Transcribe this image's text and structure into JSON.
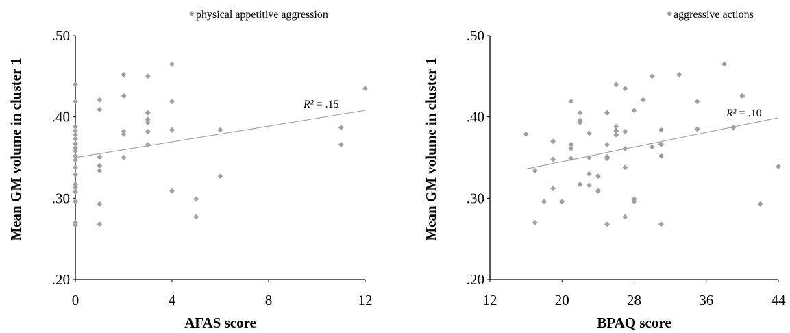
{
  "colors": {
    "marker": "#a0a0a0",
    "trend": "#a6a6a6",
    "axis": "#000000"
  },
  "chart_data": [
    {
      "type": "scatter",
      "legend": "physical appetitive aggression",
      "xlabel": "AFAS score",
      "ylabel": "Mean GM volume in cluster 1",
      "xlim": [
        0,
        12
      ],
      "ylim": [
        0.2,
        0.5
      ],
      "xticks": [
        "0",
        "4",
        "8",
        "12"
      ],
      "xtick_values": [
        0,
        4,
        8,
        12
      ],
      "yticks": [
        ".20",
        ".30",
        ".40",
        ".50"
      ],
      "ytick_values": [
        0.2,
        0.3,
        0.4,
        0.5
      ],
      "r2_label": "= .15",
      "r2_italic": "R²",
      "trendline": {
        "x": [
          0,
          12
        ],
        "y": [
          0.35,
          0.408
        ]
      },
      "points": [
        [
          0,
          0.44
        ],
        [
          0,
          0.419
        ],
        [
          0,
          0.388
        ],
        [
          0,
          0.383
        ],
        [
          0,
          0.378
        ],
        [
          0,
          0.373
        ],
        [
          0,
          0.367
        ],
        [
          0,
          0.362
        ],
        [
          0,
          0.358
        ],
        [
          0,
          0.352
        ],
        [
          0,
          0.347
        ],
        [
          0,
          0.338
        ],
        [
          0,
          0.329
        ],
        [
          0,
          0.317
        ],
        [
          0,
          0.313
        ],
        [
          0,
          0.308
        ],
        [
          0,
          0.296
        ],
        [
          0,
          0.27
        ],
        [
          0,
          0.267
        ],
        [
          1,
          0.421
        ],
        [
          1,
          0.409
        ],
        [
          1,
          0.351
        ],
        [
          1,
          0.34
        ],
        [
          1,
          0.334
        ],
        [
          1,
          0.293
        ],
        [
          1,
          0.268
        ],
        [
          2,
          0.452
        ],
        [
          2,
          0.426
        ],
        [
          2,
          0.382
        ],
        [
          2,
          0.379
        ],
        [
          2,
          0.35
        ],
        [
          3,
          0.45
        ],
        [
          3,
          0.405
        ],
        [
          3,
          0.397
        ],
        [
          3,
          0.393
        ],
        [
          3,
          0.382
        ],
        [
          3,
          0.366
        ],
        [
          4,
          0.465
        ],
        [
          4,
          0.419
        ],
        [
          4,
          0.384
        ],
        [
          4,
          0.309
        ],
        [
          5,
          0.299
        ],
        [
          5,
          0.277
        ],
        [
          6,
          0.384
        ],
        [
          6,
          0.327
        ],
        [
          11,
          0.387
        ],
        [
          11,
          0.366
        ],
        [
          12,
          0.435
        ]
      ]
    },
    {
      "type": "scatter",
      "legend": "aggressive actions",
      "xlabel": "BPAQ score",
      "ylabel": "Mean GM volume in cluster 1",
      "xlim": [
        12,
        44
      ],
      "ylim": [
        0.2,
        0.5
      ],
      "xticks": [
        "12",
        "20",
        "28",
        "36",
        "44"
      ],
      "xtick_values": [
        12,
        20,
        28,
        36,
        44
      ],
      "yticks": [
        ".20",
        ".30",
        ".40",
        ".50"
      ],
      "ytick_values": [
        0.2,
        0.3,
        0.4,
        0.5
      ],
      "r2_label": "= .10",
      "r2_italic": "R²",
      "trendline": {
        "x": [
          16,
          44
        ],
        "y": [
          0.336,
          0.399
        ]
      },
      "points": [
        [
          16,
          0.379
        ],
        [
          17,
          0.334
        ],
        [
          17,
          0.27
        ],
        [
          18,
          0.296
        ],
        [
          19,
          0.37
        ],
        [
          19,
          0.348
        ],
        [
          19,
          0.312
        ],
        [
          20,
          0.296
        ],
        [
          21,
          0.419
        ],
        [
          21,
          0.366
        ],
        [
          21,
          0.361
        ],
        [
          21,
          0.349
        ],
        [
          22,
          0.405
        ],
        [
          22,
          0.396
        ],
        [
          22,
          0.393
        ],
        [
          22,
          0.317
        ],
        [
          23,
          0.38
        ],
        [
          23,
          0.35
        ],
        [
          23,
          0.33
        ],
        [
          23,
          0.316
        ],
        [
          24,
          0.327
        ],
        [
          24,
          0.309
        ],
        [
          25,
          0.405
        ],
        [
          25,
          0.366
        ],
        [
          25,
          0.351
        ],
        [
          25,
          0.349
        ],
        [
          25,
          0.268
        ],
        [
          26,
          0.44
        ],
        [
          26,
          0.388
        ],
        [
          26,
          0.383
        ],
        [
          26,
          0.378
        ],
        [
          27,
          0.435
        ],
        [
          27,
          0.382
        ],
        [
          27,
          0.361
        ],
        [
          27,
          0.338
        ],
        [
          27,
          0.277
        ],
        [
          28,
          0.408
        ],
        [
          28,
          0.299
        ],
        [
          28,
          0.296
        ],
        [
          29,
          0.421
        ],
        [
          30,
          0.45
        ],
        [
          30,
          0.363
        ],
        [
          31,
          0.384
        ],
        [
          31,
          0.367
        ],
        [
          31,
          0.366
        ],
        [
          31,
          0.352
        ],
        [
          31,
          0.268
        ],
        [
          33,
          0.452
        ],
        [
          35,
          0.419
        ],
        [
          35,
          0.385
        ],
        [
          38,
          0.465
        ],
        [
          39,
          0.387
        ],
        [
          40,
          0.426
        ],
        [
          42,
          0.293
        ],
        [
          44,
          0.339
        ]
      ]
    }
  ]
}
